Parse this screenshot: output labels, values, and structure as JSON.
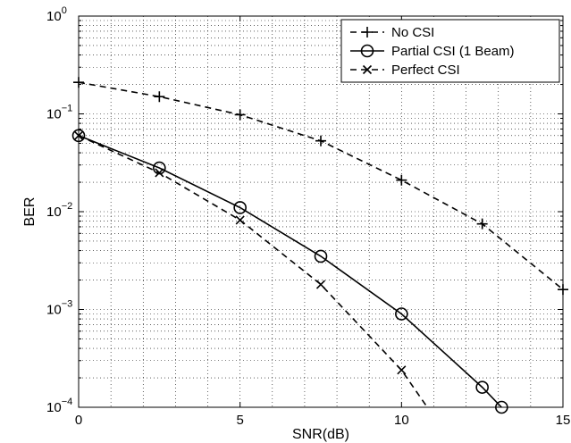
{
  "chart_data": {
    "type": "line",
    "title": "",
    "xlabel": "SNR(dB)",
    "ylabel": "BER",
    "xlim": [
      0,
      15
    ],
    "ylim": [
      0.0001,
      1
    ],
    "yscale": "log",
    "grid": true,
    "grid_style": "dotted",
    "legend_position": "top-right",
    "x_ticks": [
      0,
      5,
      10,
      15
    ],
    "x_tick_labels": [
      "0",
      "5",
      "10",
      "15"
    ],
    "y_ticks": [
      {
        "value": 1,
        "base": "10",
        "exp": "0"
      },
      {
        "value": 0.1,
        "base": "10",
        "exp": "−1"
      },
      {
        "value": 0.01,
        "base": "10",
        "exp": "−2"
      },
      {
        "value": 0.001,
        "base": "10",
        "exp": "−3"
      },
      {
        "value": 0.0001,
        "base": "10",
        "exp": "−4"
      }
    ],
    "series": [
      {
        "name": "No CSI",
        "line_style": "dashed",
        "marker": "plus",
        "color": "#000000",
        "x": [
          0,
          2.5,
          5,
          7.5,
          10,
          12.5,
          15
        ],
        "y": [
          0.21,
          0.15,
          0.098,
          0.053,
          0.021,
          0.0075,
          0.0016
        ]
      },
      {
        "name": "Partial CSI (1 Beam)",
        "line_style": "solid",
        "marker": "circle",
        "color": "#000000",
        "x": [
          0,
          2.5,
          5,
          7.5,
          10,
          12.5,
          13.1
        ],
        "y": [
          0.06,
          0.028,
          0.011,
          0.0035,
          0.0009,
          0.00016,
          0.0001
        ]
      },
      {
        "name": "Perfect CSI",
        "line_style": "dashed",
        "marker": "x",
        "color": "#000000",
        "x": [
          0,
          2.5,
          5,
          7.5,
          10,
          10.8
        ],
        "y": [
          0.06,
          0.025,
          0.0082,
          0.0018,
          0.00024,
          0.0001
        ],
        "marker_count": 5
      }
    ]
  }
}
